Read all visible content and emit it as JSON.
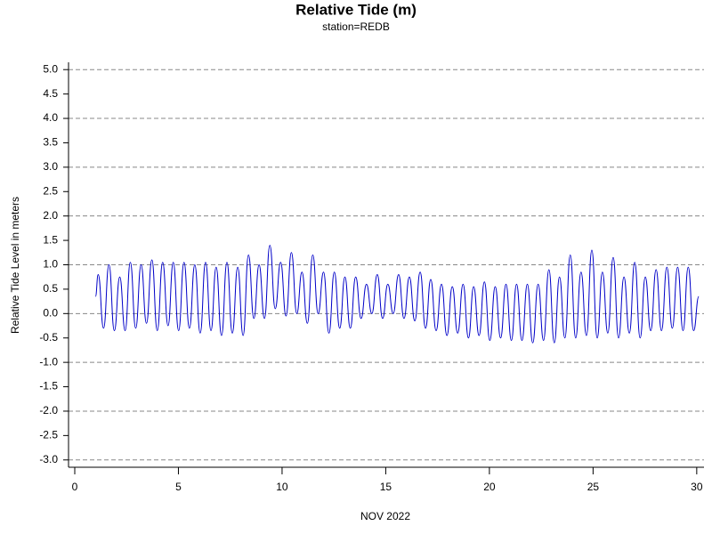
{
  "chart_data": {
    "type": "line",
    "title": "Relative Tide (m)",
    "subtitle": "station=REDB",
    "xlabel": "NOV 2022",
    "ylabel": "Relative Tide Level in meters",
    "xlim": [
      -0.3,
      30.35
    ],
    "ylim": [
      -3.15,
      5.15
    ],
    "xticks": [
      0,
      5,
      10,
      15,
      20,
      25,
      30
    ],
    "yticks": [
      {
        "value": -3,
        "label": "-3.0"
      },
      {
        "value": -2.5,
        "label": "-2.5"
      },
      {
        "value": -2,
        "label": "-2.0"
      },
      {
        "value": -1.5,
        "label": "-1.5"
      },
      {
        "value": -1,
        "label": "-1.0"
      },
      {
        "value": -0.5,
        "label": "-0.5"
      },
      {
        "value": 0,
        "label": "0.0"
      },
      {
        "value": 0.5,
        "label": "0.5"
      },
      {
        "value": 1,
        "label": "1.0"
      },
      {
        "value": 1.5,
        "label": "1.5"
      },
      {
        "value": 2,
        "label": "2.0"
      },
      {
        "value": 2.5,
        "label": "2.5"
      },
      {
        "value": 3,
        "label": "3.0"
      },
      {
        "value": 3.5,
        "label": "3.5"
      },
      {
        "value": 4,
        "label": "4.0"
      },
      {
        "value": 4.5,
        "label": "4.5"
      },
      {
        "value": 5,
        "label": "5.0"
      }
    ],
    "grid": true,
    "x": [
      1.0,
      1.13,
      1.39,
      1.65,
      1.91,
      2.17,
      2.43,
      2.68,
      2.94,
      3.2,
      3.46,
      3.72,
      3.98,
      4.24,
      4.5,
      4.75,
      5.01,
      5.27,
      5.53,
      5.79,
      6.05,
      6.31,
      6.57,
      6.82,
      7.08,
      7.34,
      7.6,
      7.86,
      8.12,
      8.38,
      8.64,
      8.89,
      9.15,
      9.41,
      9.67,
      9.93,
      10.19,
      10.45,
      10.71,
      10.96,
      11.22,
      11.48,
      11.74,
      12.0,
      12.26,
      12.52,
      12.78,
      13.03,
      13.29,
      13.55,
      13.81,
      14.07,
      14.33,
      14.59,
      14.85,
      15.1,
      15.36,
      15.62,
      15.88,
      16.14,
      16.4,
      16.66,
      16.92,
      17.17,
      17.43,
      17.69,
      17.95,
      18.21,
      18.47,
      18.73,
      18.99,
      19.24,
      19.5,
      19.76,
      20.02,
      20.28,
      20.54,
      20.8,
      21.06,
      21.31,
      21.57,
      21.83,
      22.09,
      22.35,
      22.61,
      22.87,
      23.13,
      23.38,
      23.64,
      23.9,
      24.16,
      24.42,
      24.68,
      24.94,
      25.2,
      25.45,
      25.71,
      25.97,
      26.23,
      26.49,
      26.75,
      27.01,
      27.27,
      27.52,
      27.78,
      28.04,
      28.3,
      28.56,
      28.82,
      29.08,
      29.34,
      29.59,
      29.85,
      30.1
    ],
    "series": [
      {
        "name": "Relative Tide",
        "color": "#0000c8",
        "values": [
          0.35,
          0.8,
          -0.3,
          1.0,
          -0.35,
          0.75,
          -0.35,
          1.05,
          -0.3,
          1.0,
          -0.2,
          1.1,
          -0.35,
          1.05,
          -0.25,
          1.05,
          -0.35,
          1.05,
          -0.3,
          1.0,
          -0.4,
          1.05,
          -0.35,
          0.95,
          -0.45,
          1.05,
          -0.4,
          0.95,
          -0.45,
          1.2,
          -0.1,
          1.0,
          -0.1,
          1.4,
          0.1,
          1.05,
          -0.05,
          1.25,
          0.0,
          0.85,
          -0.2,
          1.2,
          0.0,
          0.85,
          -0.4,
          0.85,
          -0.3,
          0.75,
          -0.3,
          0.75,
          -0.1,
          0.6,
          0.0,
          0.8,
          -0.1,
          0.6,
          0.0,
          0.8,
          -0.1,
          0.75,
          -0.15,
          0.85,
          -0.3,
          0.7,
          -0.35,
          0.6,
          -0.45,
          0.55,
          -0.4,
          0.6,
          -0.5,
          0.55,
          -0.45,
          0.65,
          -0.55,
          0.55,
          -0.5,
          0.6,
          -0.55,
          0.6,
          -0.55,
          0.6,
          -0.6,
          0.6,
          -0.55,
          0.9,
          -0.6,
          0.75,
          -0.5,
          1.2,
          -0.5,
          0.85,
          -0.45,
          1.3,
          -0.5,
          0.85,
          -0.4,
          1.15,
          -0.5,
          0.75,
          -0.4,
          1.05,
          -0.5,
          0.75,
          -0.35,
          0.9,
          -0.35,
          0.95,
          -0.3,
          0.95,
          -0.35,
          0.95,
          -0.35,
          0.35
        ]
      }
    ]
  }
}
